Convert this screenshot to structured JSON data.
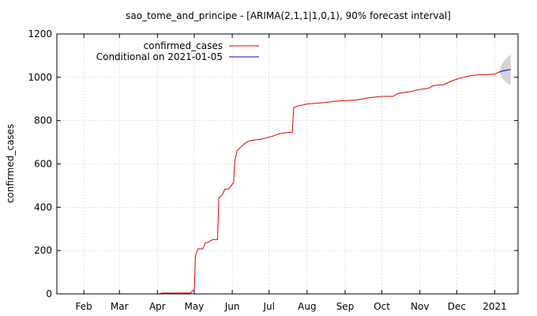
{
  "chart_data": {
    "type": "line",
    "title": "sao_tome_and_principe -  [ARIMA(2,1,1|1,0,1), 90% forecast interval]",
    "xlabel": "",
    "ylabel": "confirmed_cases",
    "ylim": [
      0,
      1200
    ],
    "xlim": [
      "2020-01-10",
      "2021-01-20"
    ],
    "yticks": [
      0,
      200,
      400,
      600,
      800,
      1000,
      1200
    ],
    "xticks": [
      {
        "date": "2020-02-01",
        "label": "Feb"
      },
      {
        "date": "2020-03-01",
        "label": "Mar"
      },
      {
        "date": "2020-04-01",
        "label": "Apr"
      },
      {
        "date": "2020-05-01",
        "label": "May"
      },
      {
        "date": "2020-06-01",
        "label": "Jun"
      },
      {
        "date": "2020-07-01",
        "label": "Jul"
      },
      {
        "date": "2020-08-01",
        "label": "Aug"
      },
      {
        "date": "2020-09-01",
        "label": "Sep"
      },
      {
        "date": "2020-10-01",
        "label": "Oct"
      },
      {
        "date": "2020-11-01",
        "label": "Nov"
      },
      {
        "date": "2020-12-01",
        "label": "Dec"
      },
      {
        "date": "2021-01-01",
        "label": "2021"
      }
    ],
    "grid": true,
    "legend_position": "top-right",
    "series": [
      {
        "name": "confirmed_cases",
        "color": "#dd0000",
        "points": [
          [
            "2020-04-02",
            0
          ],
          [
            "2020-04-05",
            4
          ],
          [
            "2020-04-28",
            4
          ],
          [
            "2020-04-30",
            16
          ],
          [
            "2020-05-01",
            16
          ],
          [
            "2020-05-02",
            174
          ],
          [
            "2020-05-04",
            208
          ],
          [
            "2020-05-08",
            208
          ],
          [
            "2020-05-10",
            235
          ],
          [
            "2020-05-13",
            240
          ],
          [
            "2020-05-16",
            251
          ],
          [
            "2020-05-20",
            251
          ],
          [
            "2020-05-21",
            441
          ],
          [
            "2020-05-24",
            458
          ],
          [
            "2020-05-26",
            484
          ],
          [
            "2020-05-29",
            484
          ],
          [
            "2020-05-31",
            499
          ],
          [
            "2020-06-02",
            513
          ],
          [
            "2020-06-03",
            611
          ],
          [
            "2020-06-05",
            661
          ],
          [
            "2020-06-09",
            683
          ],
          [
            "2020-06-12",
            698
          ],
          [
            "2020-06-16",
            708
          ],
          [
            "2020-06-25",
            715
          ],
          [
            "2020-07-03",
            727
          ],
          [
            "2020-07-10",
            740
          ],
          [
            "2020-07-17",
            746
          ],
          [
            "2020-07-20",
            746
          ],
          [
            "2020-07-21",
            860
          ],
          [
            "2020-07-25",
            868
          ],
          [
            "2020-08-01",
            877
          ],
          [
            "2020-08-15",
            883
          ],
          [
            "2020-08-25",
            890
          ],
          [
            "2020-09-10",
            895
          ],
          [
            "2020-09-20",
            905
          ],
          [
            "2020-10-01",
            912
          ],
          [
            "2020-10-10",
            912
          ],
          [
            "2020-10-14",
            925
          ],
          [
            "2020-10-25",
            935
          ],
          [
            "2020-11-01",
            944
          ],
          [
            "2020-11-08",
            949
          ],
          [
            "2020-11-12",
            962
          ],
          [
            "2020-11-20",
            966
          ],
          [
            "2020-11-28",
            985
          ],
          [
            "2020-12-03",
            995
          ],
          [
            "2020-12-10",
            1005
          ],
          [
            "2020-12-15",
            1010
          ],
          [
            "2020-12-25",
            1012
          ],
          [
            "2021-01-01",
            1015
          ],
          [
            "2021-01-05",
            1025
          ]
        ]
      },
      {
        "name": "Conditional on 2021-01-05",
        "color": "#0000dd",
        "points": [
          [
            "2021-01-05",
            1025
          ],
          [
            "2021-01-08",
            1030
          ],
          [
            "2021-01-11",
            1033
          ],
          [
            "2021-01-14",
            1036
          ]
        ]
      }
    ],
    "forecast_interval": {
      "color": "#d3d3d3",
      "points": [
        [
          "2021-01-05",
          1025,
          1025
        ],
        [
          "2021-01-06",
          1003,
          1052
        ],
        [
          "2021-01-08",
          990,
          1070
        ],
        [
          "2021-01-10",
          978,
          1085
        ],
        [
          "2021-01-12",
          970,
          1095
        ],
        [
          "2021-01-14",
          965,
          1104
        ]
      ]
    }
  }
}
